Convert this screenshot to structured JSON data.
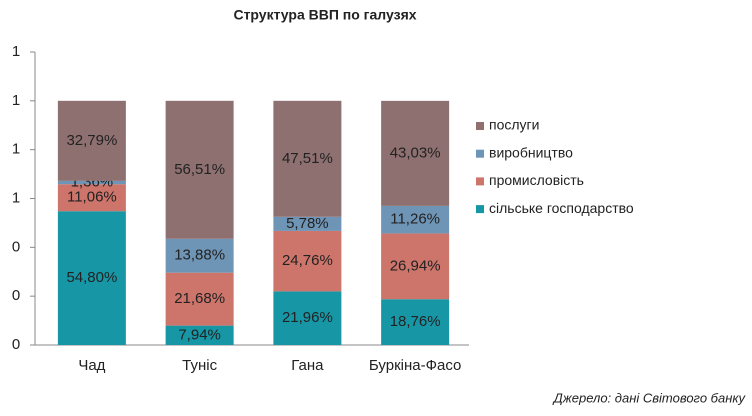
{
  "chart_data": {
    "type": "stacked_bar",
    "title": "Структура ВВП по галузях",
    "categories": [
      "Чад",
      "Туніс",
      "Гана",
      "Буркіна-Фасо"
    ],
    "series": [
      {
        "name": "сільське господарство",
        "color": "#1797a6",
        "values": [
          0.548,
          0.0794,
          0.2196,
          0.1876
        ],
        "value_labels": [
          "54,80%",
          "7,94%",
          "21,96%",
          "18,76%"
        ]
      },
      {
        "name": "промисловість",
        "color": "#cd746b",
        "values": [
          0.1106,
          0.2168,
          0.2476,
          0.2694
        ],
        "value_labels": [
          "11,06%",
          "21,68%",
          "24,76%",
          "26,94%"
        ]
      },
      {
        "name": "виробництво",
        "color": "#6f95b6",
        "values": [
          0.0136,
          0.1388,
          0.0578,
          0.1126
        ],
        "value_labels": [
          "1,36%",
          "13,88%",
          "5,78%",
          "11,26%"
        ]
      },
      {
        "name": "послуги",
        "color": "#8f7070",
        "values": [
          0.3279,
          0.5651,
          0.4751,
          0.4303
        ],
        "value_labels": [
          "32,79%",
          "56,51%",
          "47,51%",
          "43,03%"
        ]
      }
    ],
    "ylim": [
      0,
      1.2
    ],
    "yticks": [
      {
        "value": 0,
        "label": "0"
      },
      {
        "value": 0.2,
        "label": "0"
      },
      {
        "value": 0.4,
        "label": "0"
      },
      {
        "value": 0.6,
        "label": "1"
      },
      {
        "value": 0.8,
        "label": "1"
      },
      {
        "value": 1.0,
        "label": "1"
      },
      {
        "value": 1.2,
        "label": "1"
      }
    ],
    "legend": "right",
    "note": "Джерело: дані Світового банку"
  }
}
